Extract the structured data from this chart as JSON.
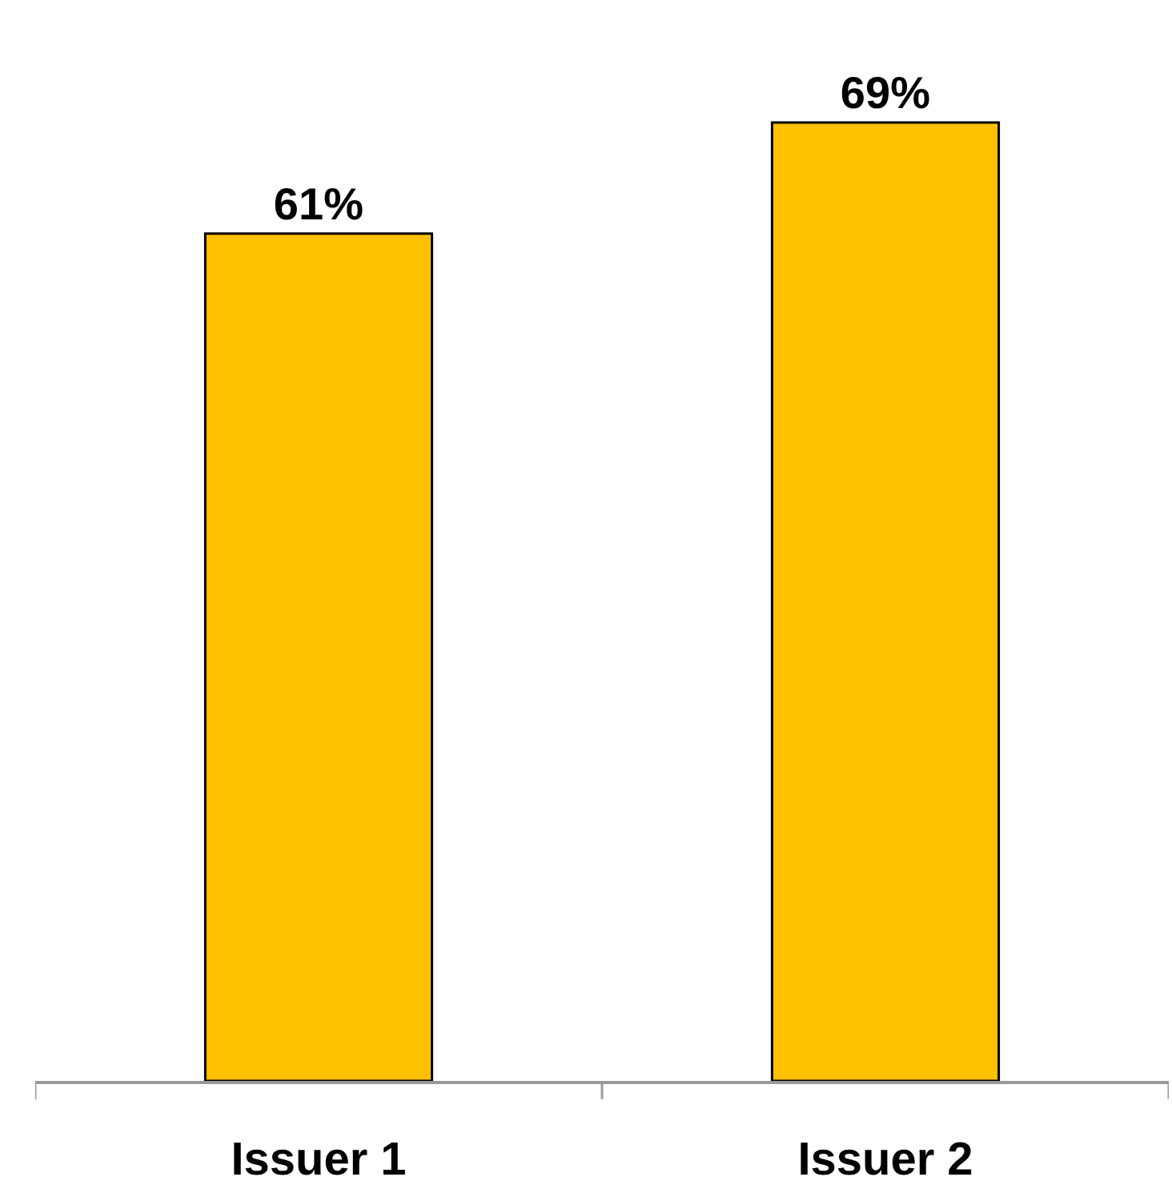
{
  "chart_data": {
    "type": "bar",
    "categories": [
      "Issuer 1",
      "Issuer 2"
    ],
    "values": [
      61,
      69
    ],
    "value_labels": [
      "61%",
      "69%"
    ],
    "color": "#ffc000"
  }
}
